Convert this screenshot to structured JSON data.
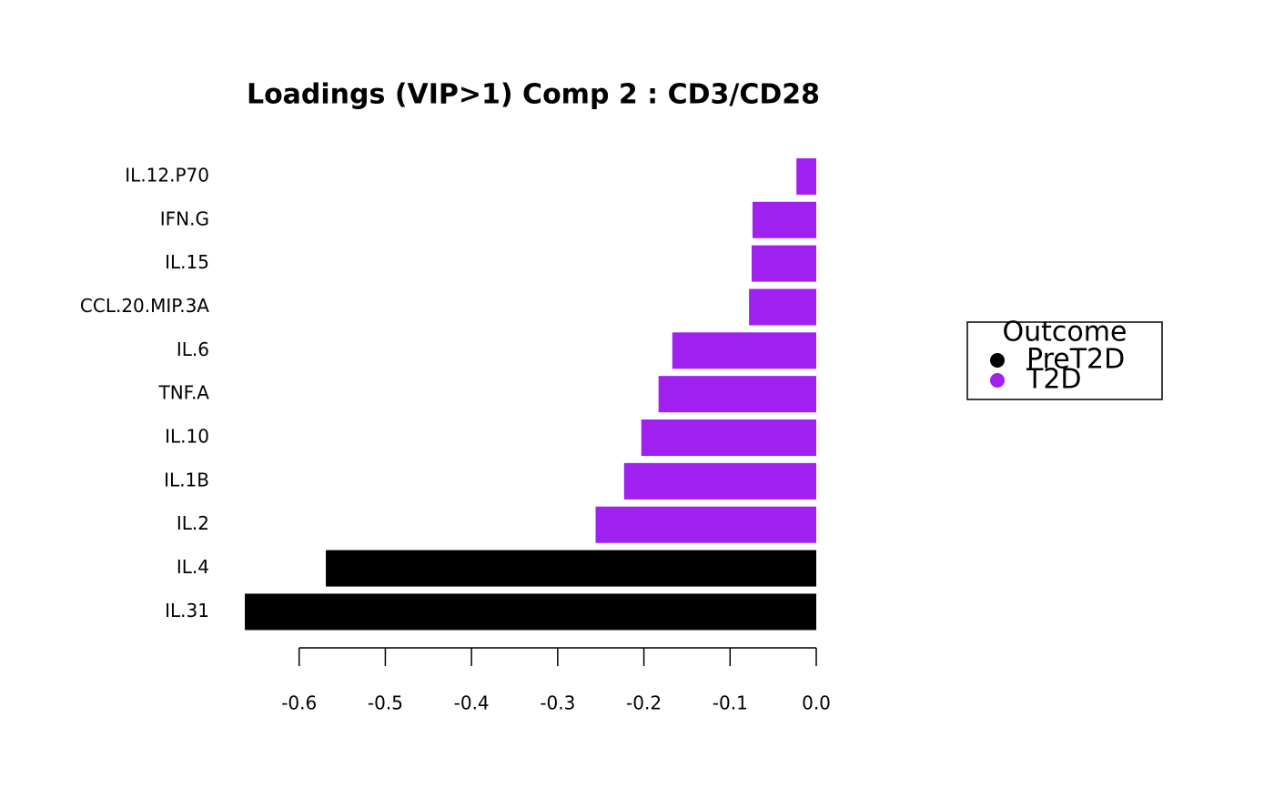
{
  "chart_data": {
    "type": "hbar",
    "title": "Loadings (VIP>1) Comp 2 : CD3/CD28",
    "categories": [
      "IL.12.P70",
      "IFN.G",
      "IL.15",
      "CCL.20.MIP.3A",
      "IL.6",
      "TNF.A",
      "IL.10",
      "IL.1B",
      "IL.2",
      "IL.4",
      "IL.31"
    ],
    "series": [
      {
        "name": "PreT2D",
        "color": "#000000",
        "values": [
          null,
          null,
          null,
          null,
          null,
          null,
          null,
          null,
          null,
          -0.569,
          -0.663
        ]
      },
      {
        "name": "T2D",
        "color": "#a020f0",
        "values": [
          -0.023,
          -0.074,
          -0.075,
          -0.078,
          -0.167,
          -0.183,
          -0.203,
          -0.223,
          -0.256,
          null,
          null
        ]
      }
    ],
    "legend_title": "Outcome",
    "xlim": [
      -0.7,
      0
    ],
    "xticks": [
      -0.6,
      -0.5,
      -0.4,
      -0.3,
      -0.2,
      -0.1,
      {
        "value": 0,
        "label": "0.0"
      }
    ]
  }
}
